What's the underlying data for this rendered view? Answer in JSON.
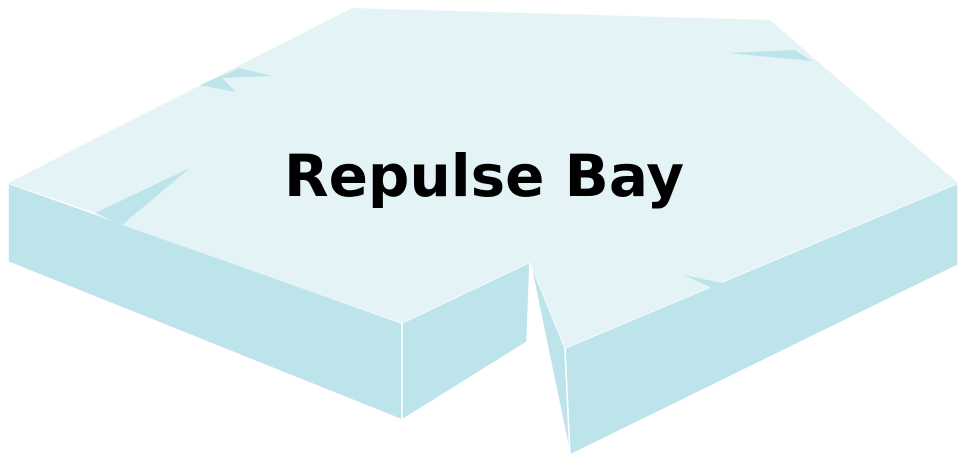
{
  "label": "Repulse Bay"
}
